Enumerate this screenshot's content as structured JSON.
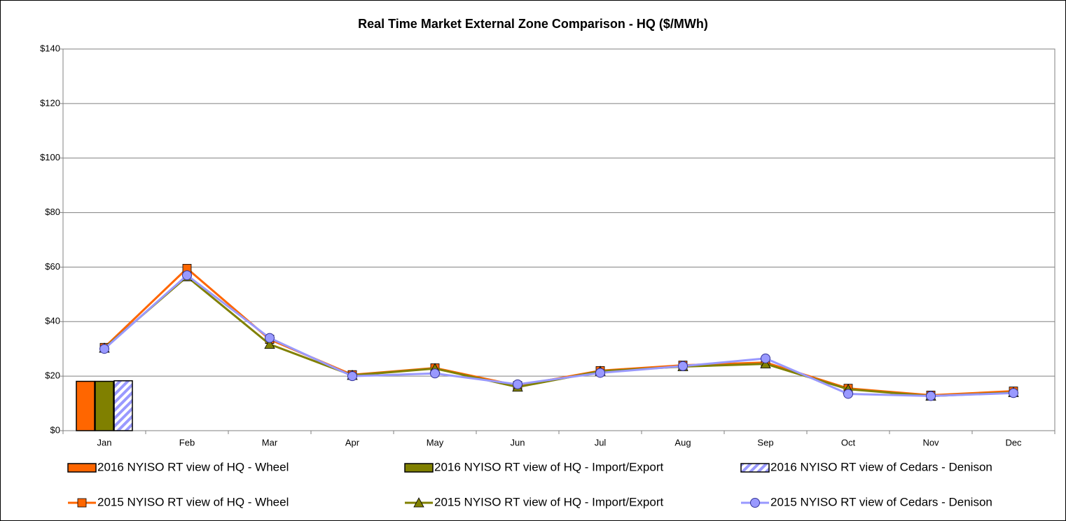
{
  "chart_data": {
    "type": "combo",
    "title": "Real Time Market External Zone Comparison - HQ ($/MWh)",
    "categories": [
      "Jan",
      "Feb",
      "Mar",
      "Apr",
      "May",
      "Jun",
      "Jul",
      "Aug",
      "Sep",
      "Oct",
      "Nov",
      "Dec"
    ],
    "ylim": [
      0,
      140
    ],
    "yticks": [
      {
        "value": 0,
        "label": "$0"
      },
      {
        "value": 20,
        "label": "$20"
      },
      {
        "value": 40,
        "label": "$40"
      },
      {
        "value": 60,
        "label": "$60"
      },
      {
        "value": 80,
        "label": "$80"
      },
      {
        "value": 100,
        "label": "$100"
      },
      {
        "value": 120,
        "label": "$120"
      },
      {
        "value": 140,
        "label": "$140"
      }
    ],
    "grid": true,
    "series": [
      {
        "name": "2016 NYISO RT view of HQ - Wheel",
        "type": "bar",
        "color": "#ff6600",
        "values": [
          18.1,
          null,
          null,
          null,
          null,
          null,
          null,
          null,
          null,
          null,
          null,
          null
        ]
      },
      {
        "name": "2016 NYISO RT view of HQ - Import/Export",
        "type": "bar",
        "color": "#808000",
        "values": [
          18.1,
          null,
          null,
          null,
          null,
          null,
          null,
          null,
          null,
          null,
          null,
          null
        ]
      },
      {
        "name": "2016 NYISO RT view of Cedars - Denison",
        "type": "bar",
        "color": "#9999ff",
        "hatch": true,
        "values": [
          18.3,
          null,
          null,
          null,
          null,
          null,
          null,
          null,
          null,
          null,
          null,
          null
        ]
      },
      {
        "name": "2015 NYISO RT view of HQ - Wheel",
        "type": "line",
        "color": "#ff6600",
        "marker": "square",
        "values": [
          30.5,
          59.5,
          33.5,
          20.5,
          23,
          16.5,
          22,
          24,
          25,
          15.5,
          13,
          14.5
        ]
      },
      {
        "name": "2015 NYISO RT view of HQ - Import/Export",
        "type": "line",
        "color": "#808000",
        "marker": "triangle",
        "values": [
          30.3,
          56.5,
          31.7,
          20.3,
          22.8,
          16,
          21.8,
          23.5,
          24.5,
          15.2,
          12.7,
          14
        ]
      },
      {
        "name": "2015 NYISO RT view of Cedars - Denison",
        "type": "line",
        "color": "#9999ff",
        "marker": "circle",
        "values": [
          30,
          57,
          34,
          20,
          21,
          17,
          21.2,
          23.7,
          26.5,
          13.5,
          12.7,
          13.8
        ]
      }
    ]
  }
}
